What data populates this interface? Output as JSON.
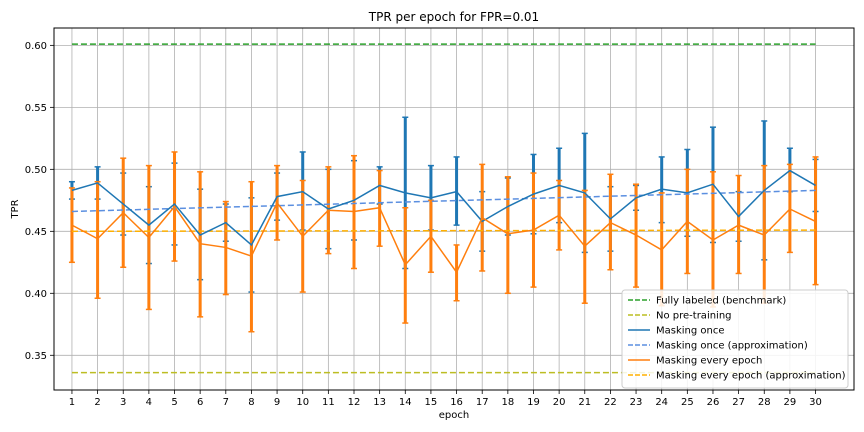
{
  "chart_data": {
    "type": "line",
    "title": "TPR per epoch for FPR=0.01",
    "xlabel": "epoch",
    "ylabel": "TPR",
    "xlim": [
      0.3,
      31.5
    ],
    "ylim": [
      0.322,
      0.614
    ],
    "grid": true,
    "legend_position": "lower-right",
    "x": [
      1,
      2,
      3,
      4,
      5,
      6,
      7,
      8,
      9,
      10,
      11,
      12,
      13,
      14,
      15,
      16,
      17,
      18,
      19,
      20,
      21,
      22,
      23,
      24,
      25,
      26,
      27,
      28,
      29,
      30
    ],
    "yticks": [
      0.35,
      0.4,
      0.45,
      0.5,
      0.55,
      0.6
    ],
    "ytick_labels": [
      "0.35",
      "0.40",
      "0.45",
      "0.50",
      "0.55",
      "0.60"
    ],
    "series": [
      {
        "name": "Fully labeled (benchmark)",
        "style": "dashed",
        "color": "#2ca02c",
        "constant": 0.601
      },
      {
        "name": "No pre-training",
        "style": "dashed",
        "color": "#bcbd22",
        "constant": 0.336
      },
      {
        "name": "Masking once",
        "style": "solid",
        "color": "#1f77b4",
        "values": [
          0.483,
          0.489,
          0.472,
          0.455,
          0.472,
          0.447,
          0.457,
          0.439,
          0.478,
          0.482,
          0.468,
          0.475,
          0.487,
          0.481,
          0.477,
          0.482,
          0.458,
          0.47,
          0.48,
          0.487,
          0.481,
          0.46,
          0.477,
          0.484,
          0.481,
          0.488,
          0.462,
          0.483,
          0.499,
          0.487
        ],
        "err_low": [
          0.476,
          0.476,
          0.447,
          0.424,
          0.439,
          0.411,
          0.442,
          0.401,
          0.459,
          0.451,
          0.436,
          0.443,
          0.472,
          0.42,
          0.451,
          0.455,
          0.434,
          0.447,
          0.448,
          0.457,
          0.433,
          0.434,
          0.467,
          0.457,
          0.446,
          0.441,
          0.442,
          0.427,
          0.482,
          0.466
        ],
        "err_high": [
          0.49,
          0.502,
          0.497,
          0.486,
          0.505,
          0.484,
          0.472,
          0.477,
          0.497,
          0.514,
          0.5,
          0.507,
          0.502,
          0.542,
          0.503,
          0.51,
          0.482,
          0.493,
          0.512,
          0.517,
          0.529,
          0.486,
          0.487,
          0.51,
          0.516,
          0.534,
          0.482,
          0.539,
          0.517,
          0.508
        ]
      },
      {
        "name": "Masking once (approximation)",
        "style": "dashed",
        "color": "#5b8fe0",
        "line": [
          0.466,
          0.483
        ]
      },
      {
        "name": "Masking every epoch",
        "style": "solid",
        "color": "#ff7f0e",
        "values": [
          0.455,
          0.444,
          0.465,
          0.445,
          0.47,
          0.44,
          0.437,
          0.43,
          0.473,
          0.446,
          0.467,
          0.466,
          0.469,
          0.423,
          0.446,
          0.417,
          0.461,
          0.448,
          0.451,
          0.463,
          0.438,
          0.457,
          0.447,
          0.435,
          0.458,
          0.443,
          0.455,
          0.447,
          0.468,
          0.458
        ],
        "err_low": [
          0.425,
          0.396,
          0.421,
          0.387,
          0.426,
          0.381,
          0.399,
          0.369,
          0.443,
          0.401,
          0.432,
          0.42,
          0.438,
          0.376,
          0.417,
          0.394,
          0.418,
          0.4,
          0.405,
          0.435,
          0.392,
          0.419,
          0.405,
          0.39,
          0.416,
          0.389,
          0.416,
          0.392,
          0.433,
          0.407
        ],
        "err_high": [
          0.485,
          0.49,
          0.509,
          0.503,
          0.514,
          0.498,
          0.474,
          0.49,
          0.503,
          0.491,
          0.502,
          0.511,
          0.499,
          0.469,
          0.475,
          0.439,
          0.504,
          0.494,
          0.497,
          0.491,
          0.483,
          0.496,
          0.488,
          0.481,
          0.5,
          0.498,
          0.495,
          0.503,
          0.504,
          0.51
        ]
      },
      {
        "name": "Masking every epoch (approximation)",
        "style": "dashed",
        "color": "#ffb000",
        "line": [
          0.45,
          0.451
        ]
      }
    ]
  }
}
